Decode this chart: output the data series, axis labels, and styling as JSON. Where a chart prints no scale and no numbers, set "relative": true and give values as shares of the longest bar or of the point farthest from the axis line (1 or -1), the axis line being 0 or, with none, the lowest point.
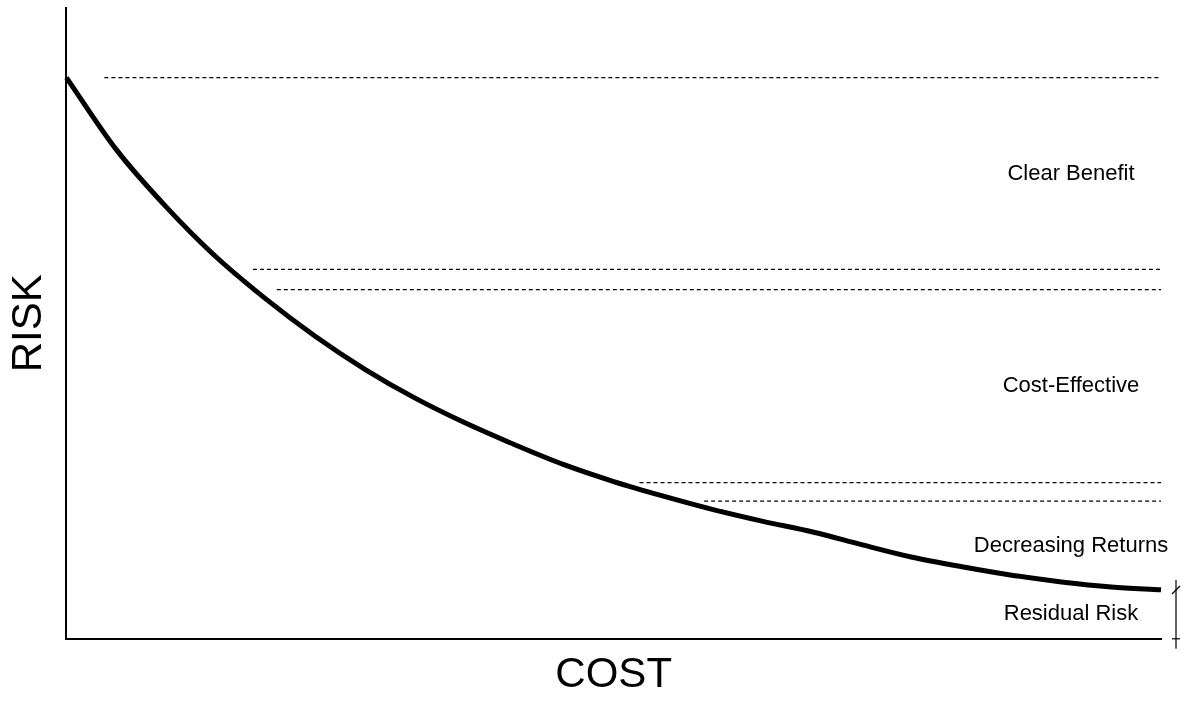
{
  "chart_data": {
    "type": "line",
    "relative": true,
    "xlabel": "COST",
    "ylabel": "RISK",
    "categories": [
      null,
      null,
      null,
      null,
      null,
      null,
      null,
      null,
      null,
      null,
      null,
      null,
      null,
      null,
      null,
      null,
      null,
      null,
      null,
      null,
      null,
      null,
      null
    ],
    "series": [
      {
        "color": "#000000",
        "values": [
          1.0,
          0.872,
          0.77,
          0.681,
          0.606,
          0.539,
          0.48,
          0.429,
          0.385,
          0.346,
          0.31,
          0.28,
          0.254,
          0.23,
          0.209,
          0.19,
          0.167,
          0.145,
          0.128,
          0.113,
          0.101,
          0.092,
          0.087
        ]
      }
    ],
    "ref_lines": [
      {
        "axis": "y",
        "value": 1.0,
        "color": "#000000",
        "line_style": "dashed"
      },
      {
        "axis": "y",
        "value": 0.658,
        "color": "#000000",
        "line_style": "dashed"
      },
      {
        "axis": "y",
        "value": 0.622,
        "color": "#000000",
        "line_style": "dashed"
      },
      {
        "axis": "y",
        "value": 0.278,
        "color": "#000000",
        "line_style": "dashed"
      },
      {
        "axis": "y",
        "value": 0.245,
        "color": "#000000",
        "line_style": "dashed"
      }
    ],
    "annotations": [
      "Clear Benefit",
      "Cost-Effective",
      "Decreasing Returns",
      "Residual Risk"
    ]
  }
}
